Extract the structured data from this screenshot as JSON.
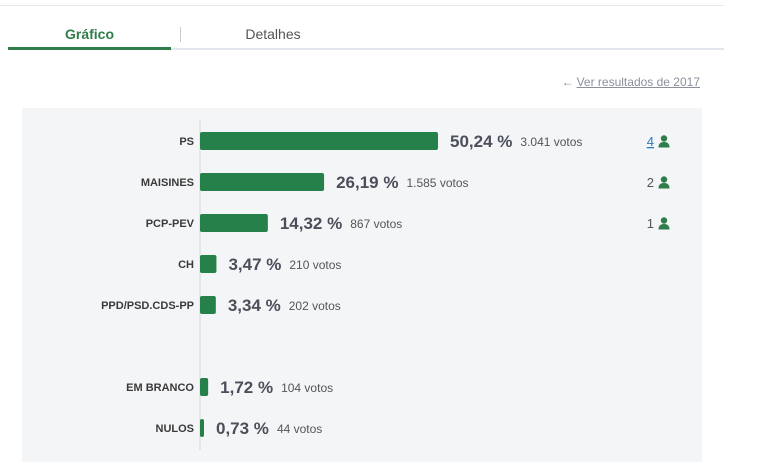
{
  "tabs": {
    "grafico": "Gráfico",
    "detalhes": "Detalhes"
  },
  "previous_results_link": "Ver resultados de 2017",
  "colors": {
    "accent": "#2e7d4a",
    "bar": "#25804a",
    "person_icon": "#2e7d4a",
    "link": "#2a7bc4"
  },
  "chart_data": {
    "type": "bar",
    "orientation": "horizontal",
    "categories": [
      "PS",
      "MAISINES",
      "PCP-PEV",
      "CH",
      "PPD/PSD.CDS-PP",
      "EM BRANCO",
      "NULOS"
    ],
    "series": [
      {
        "values": [
          50.24,
          26.19,
          14.32,
          3.47,
          3.34,
          1.72,
          0.73
        ],
        "value_labels": [
          "50,24 %",
          "26,19 %",
          "14,32 %",
          "3,47 %",
          "3,34 %",
          "1,72 %",
          "0,73 %"
        ]
      }
    ],
    "votes_labels": [
      "3.041 votos",
      "1.585 votos",
      "867 votos",
      "210 votos",
      "202 votos",
      "104 votos",
      "44 votos"
    ],
    "seats": [
      {
        "row": 0,
        "value": "4",
        "link": true
      },
      {
        "row": 1,
        "value": "2",
        "link": false
      },
      {
        "row": 2,
        "value": "1",
        "link": false
      }
    ],
    "xlim": [
      0,
      100
    ],
    "grid": false,
    "legend": "none"
  }
}
